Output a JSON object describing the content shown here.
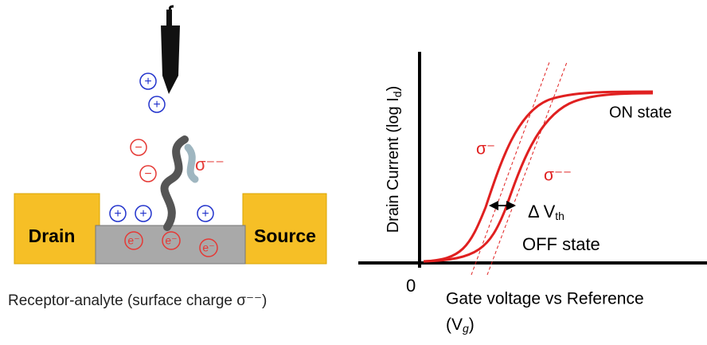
{
  "left": {
    "drain": "Drain",
    "source": "Source",
    "caption": "Receptor-analyte (surface charge σ⁻⁻)",
    "sigma": "σ⁻⁻",
    "plus": "+",
    "minus": "−",
    "electron": "e⁻"
  },
  "right": {
    "y_label": {
      "text": "Drain Current (log I",
      "sub": "d",
      "end": ")"
    },
    "x_label": {
      "text": "Gate voltage vs Reference",
      "paren": "(V",
      "sub": "g",
      "end": ")"
    },
    "origin": "0",
    "on_state": "ON state",
    "off_state": "OFF state",
    "sigma_minus": "σ⁻",
    "sigma_double": "σ⁻⁻",
    "delta_vth": {
      "text": "Δ V",
      "sub": "th"
    }
  }
}
